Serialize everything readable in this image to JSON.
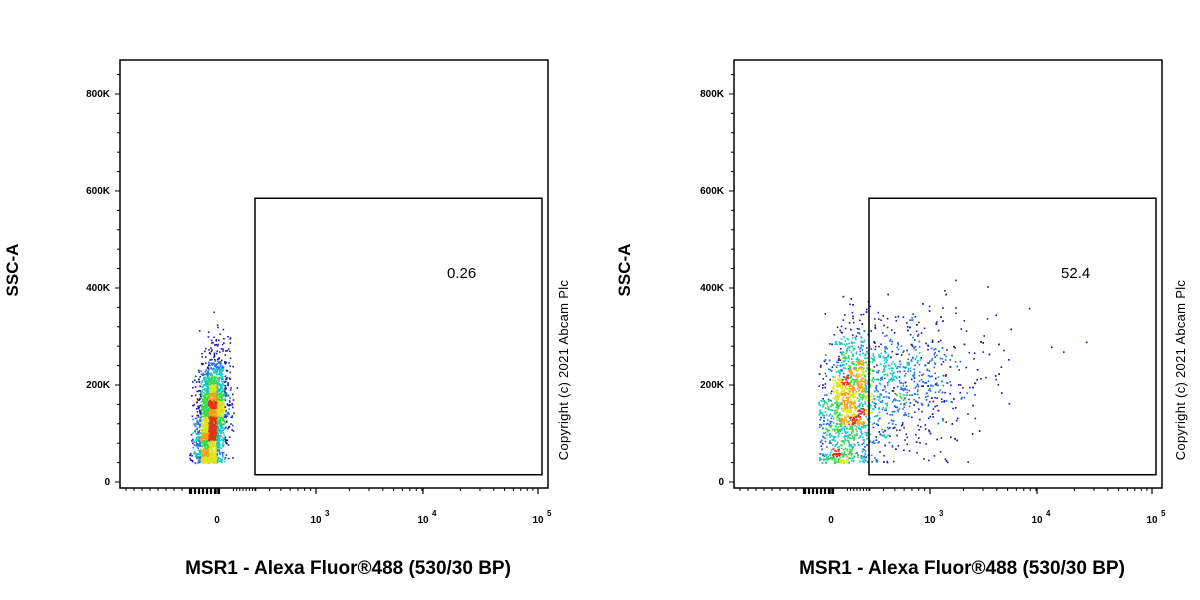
{
  "chart_data": [
    {
      "type": "scatter",
      "title": "",
      "xlabel": "MSR1 - Alexa Fluor®488 (530/30 BP)",
      "ylabel": "SSC-A",
      "x_scale": "biexponential",
      "xticks": [
        {
          "value": 0,
          "base": "0",
          "exp": ""
        },
        {
          "value": 1000,
          "base": "10",
          "exp": "3"
        },
        {
          "value": 10000,
          "base": "10",
          "exp": "4"
        },
        {
          "value": 100000,
          "base": "10",
          "exp": "5"
        }
      ],
      "yticks": [
        {
          "value": 0,
          "label": "0"
        },
        {
          "value": 200000,
          "label": "200K"
        },
        {
          "value": 400000,
          "label": "400K"
        },
        {
          "value": 600000,
          "label": "600K"
        },
        {
          "value": 800000,
          "label": "800K"
        }
      ],
      "ylim": [
        0,
        870000
      ],
      "gate": {
        "xmin": 300,
        "xmax": 130000,
        "ymin": 15000,
        "ymax": 585000,
        "label": "0.26"
      },
      "population": {
        "x_center": -50,
        "x_spread": 60,
        "y_center": 130000,
        "y_spread": 60000,
        "n": 2600
      },
      "copyright": "Copyright (c) 2021 Abcam Plc"
    },
    {
      "type": "scatter",
      "title": "",
      "xlabel": "MSR1 - Alexa Fluor®488 (530/30 BP)",
      "ylabel": "SSC-A",
      "x_scale": "biexponential",
      "xticks": [
        {
          "value": 0,
          "base": "0",
          "exp": ""
        },
        {
          "value": 1000,
          "base": "10",
          "exp": "3"
        },
        {
          "value": 10000,
          "base": "10",
          "exp": "4"
        },
        {
          "value": 100000,
          "base": "10",
          "exp": "5"
        }
      ],
      "yticks": [
        {
          "value": 0,
          "label": "0"
        },
        {
          "value": 200000,
          "label": "200K"
        },
        {
          "value": 400000,
          "label": "400K"
        },
        {
          "value": 600000,
          "label": "600K"
        },
        {
          "value": 800000,
          "label": "800K"
        }
      ],
      "ylim": [
        0,
        870000
      ],
      "gate": {
        "xmin": 300,
        "xmax": 130000,
        "ymin": 15000,
        "ymax": 585000,
        "label": "52.4"
      },
      "population": {
        "x_center": 300,
        "x_spread": 400,
        "y_center": 180000,
        "y_spread": 70000,
        "n": 2600
      },
      "copyright": "Copyright (c) 2021 Abcam Plc"
    }
  ],
  "colors": {
    "axis": "#000000",
    "density_low": "#1a1aa8",
    "density_mid": "#17c7c0",
    "density_high": "#e0321a"
  }
}
